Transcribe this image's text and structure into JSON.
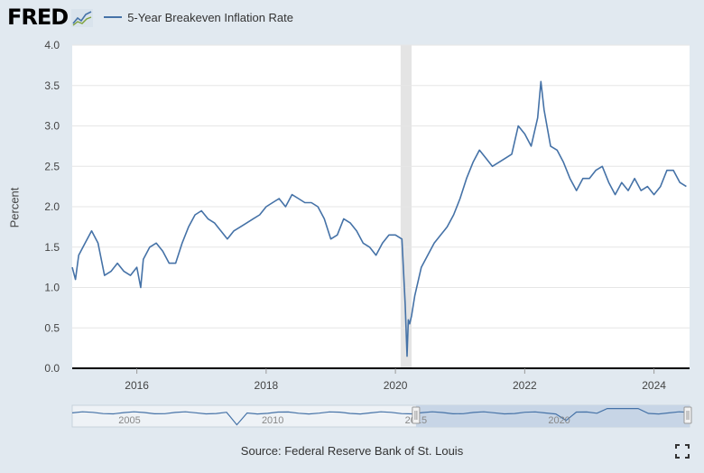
{
  "header": {
    "logo_text": "FRED",
    "series_label": "5-Year Breakeven Inflation Rate",
    "series_color": "#4572a7"
  },
  "icons": {
    "logo_mark": "line-chart-icon",
    "fullscreen": "fullscreen-icon"
  },
  "footer": {
    "source": "Source: Federal Reserve Bank of St. Louis"
  },
  "chart_data": {
    "type": "line",
    "ylabel": "Percent",
    "xlim": [
      2015.0,
      2024.55
    ],
    "ylim": [
      0,
      4
    ],
    "y_ticks": [
      "0.0",
      "0.5",
      "1.0",
      "1.5",
      "2.0",
      "2.5",
      "3.0",
      "3.5",
      "4.0"
    ],
    "x_ticks": [
      {
        "year": 2016,
        "label": "2016"
      },
      {
        "year": 2018,
        "label": "2018"
      },
      {
        "year": 2020,
        "label": "2020"
      },
      {
        "year": 2022,
        "label": "2022"
      },
      {
        "year": 2024,
        "label": "2024"
      }
    ],
    "recession": [
      2020.08,
      2020.25
    ],
    "grid": true,
    "line_color": "#4572a7",
    "series": [
      {
        "x": [
          2015.0,
          2015.05,
          2015.1,
          2015.2,
          2015.3,
          2015.4,
          2015.5,
          2015.6,
          2015.7,
          2015.8,
          2015.9,
          2016.0,
          2016.06,
          2016.1,
          2016.2,
          2016.3,
          2016.4,
          2016.5,
          2016.6,
          2016.7,
          2016.8,
          2016.9,
          2017.0,
          2017.1,
          2017.2,
          2017.3,
          2017.4,
          2017.5,
          2017.6,
          2017.7,
          2017.8,
          2017.9,
          2018.0,
          2018.1,
          2018.2,
          2018.3,
          2018.4,
          2018.5,
          2018.6,
          2018.7,
          2018.8,
          2018.9,
          2019.0,
          2019.1,
          2019.2,
          2019.3,
          2019.4,
          2019.5,
          2019.6,
          2019.7,
          2019.8,
          2019.9,
          2020.0,
          2020.1,
          2020.15,
          2020.18,
          2020.2,
          2020.22,
          2020.25,
          2020.3,
          2020.4,
          2020.5,
          2020.6,
          2020.7,
          2020.8,
          2020.9,
          2021.0,
          2021.1,
          2021.2,
          2021.3,
          2021.4,
          2021.5,
          2021.6,
          2021.7,
          2021.8,
          2021.9,
          2022.0,
          2022.1,
          2022.2,
          2022.25,
          2022.3,
          2022.4,
          2022.5,
          2022.6,
          2022.7,
          2022.8,
          2022.9,
          2023.0,
          2023.1,
          2023.2,
          2023.3,
          2023.4,
          2023.5,
          2023.6,
          2023.7,
          2023.8,
          2023.9,
          2024.0,
          2024.1,
          2024.2,
          2024.3,
          2024.4,
          2024.5
        ],
        "y": [
          1.25,
          1.1,
          1.4,
          1.55,
          1.7,
          1.55,
          1.15,
          1.2,
          1.3,
          1.2,
          1.15,
          1.25,
          1.0,
          1.35,
          1.5,
          1.55,
          1.45,
          1.3,
          1.3,
          1.55,
          1.75,
          1.9,
          1.95,
          1.85,
          1.8,
          1.7,
          1.6,
          1.7,
          1.75,
          1.8,
          1.85,
          1.9,
          2.0,
          2.05,
          2.1,
          2.0,
          2.15,
          2.1,
          2.05,
          2.05,
          2.0,
          1.85,
          1.6,
          1.65,
          1.85,
          1.8,
          1.7,
          1.55,
          1.5,
          1.4,
          1.55,
          1.65,
          1.65,
          1.6,
          0.8,
          0.15,
          0.6,
          0.55,
          0.65,
          0.9,
          1.25,
          1.4,
          1.55,
          1.65,
          1.75,
          1.9,
          2.1,
          2.35,
          2.55,
          2.7,
          2.6,
          2.5,
          2.55,
          2.6,
          2.65,
          3.0,
          2.9,
          2.75,
          3.1,
          3.55,
          3.2,
          2.75,
          2.7,
          2.55,
          2.35,
          2.2,
          2.35,
          2.35,
          2.45,
          2.5,
          2.3,
          2.15,
          2.3,
          2.2,
          2.35,
          2.2,
          2.25,
          2.15,
          2.25,
          2.45,
          2.45,
          2.3,
          2.25
        ]
      }
    ],
    "navigator": {
      "x_ticks": [
        {
          "year": 2005,
          "label": "2005"
        },
        {
          "year": 2010,
          "label": "2010"
        },
        {
          "year": 2015,
          "label": "2015"
        },
        {
          "year": 2020,
          "label": "2020"
        }
      ]
    }
  }
}
